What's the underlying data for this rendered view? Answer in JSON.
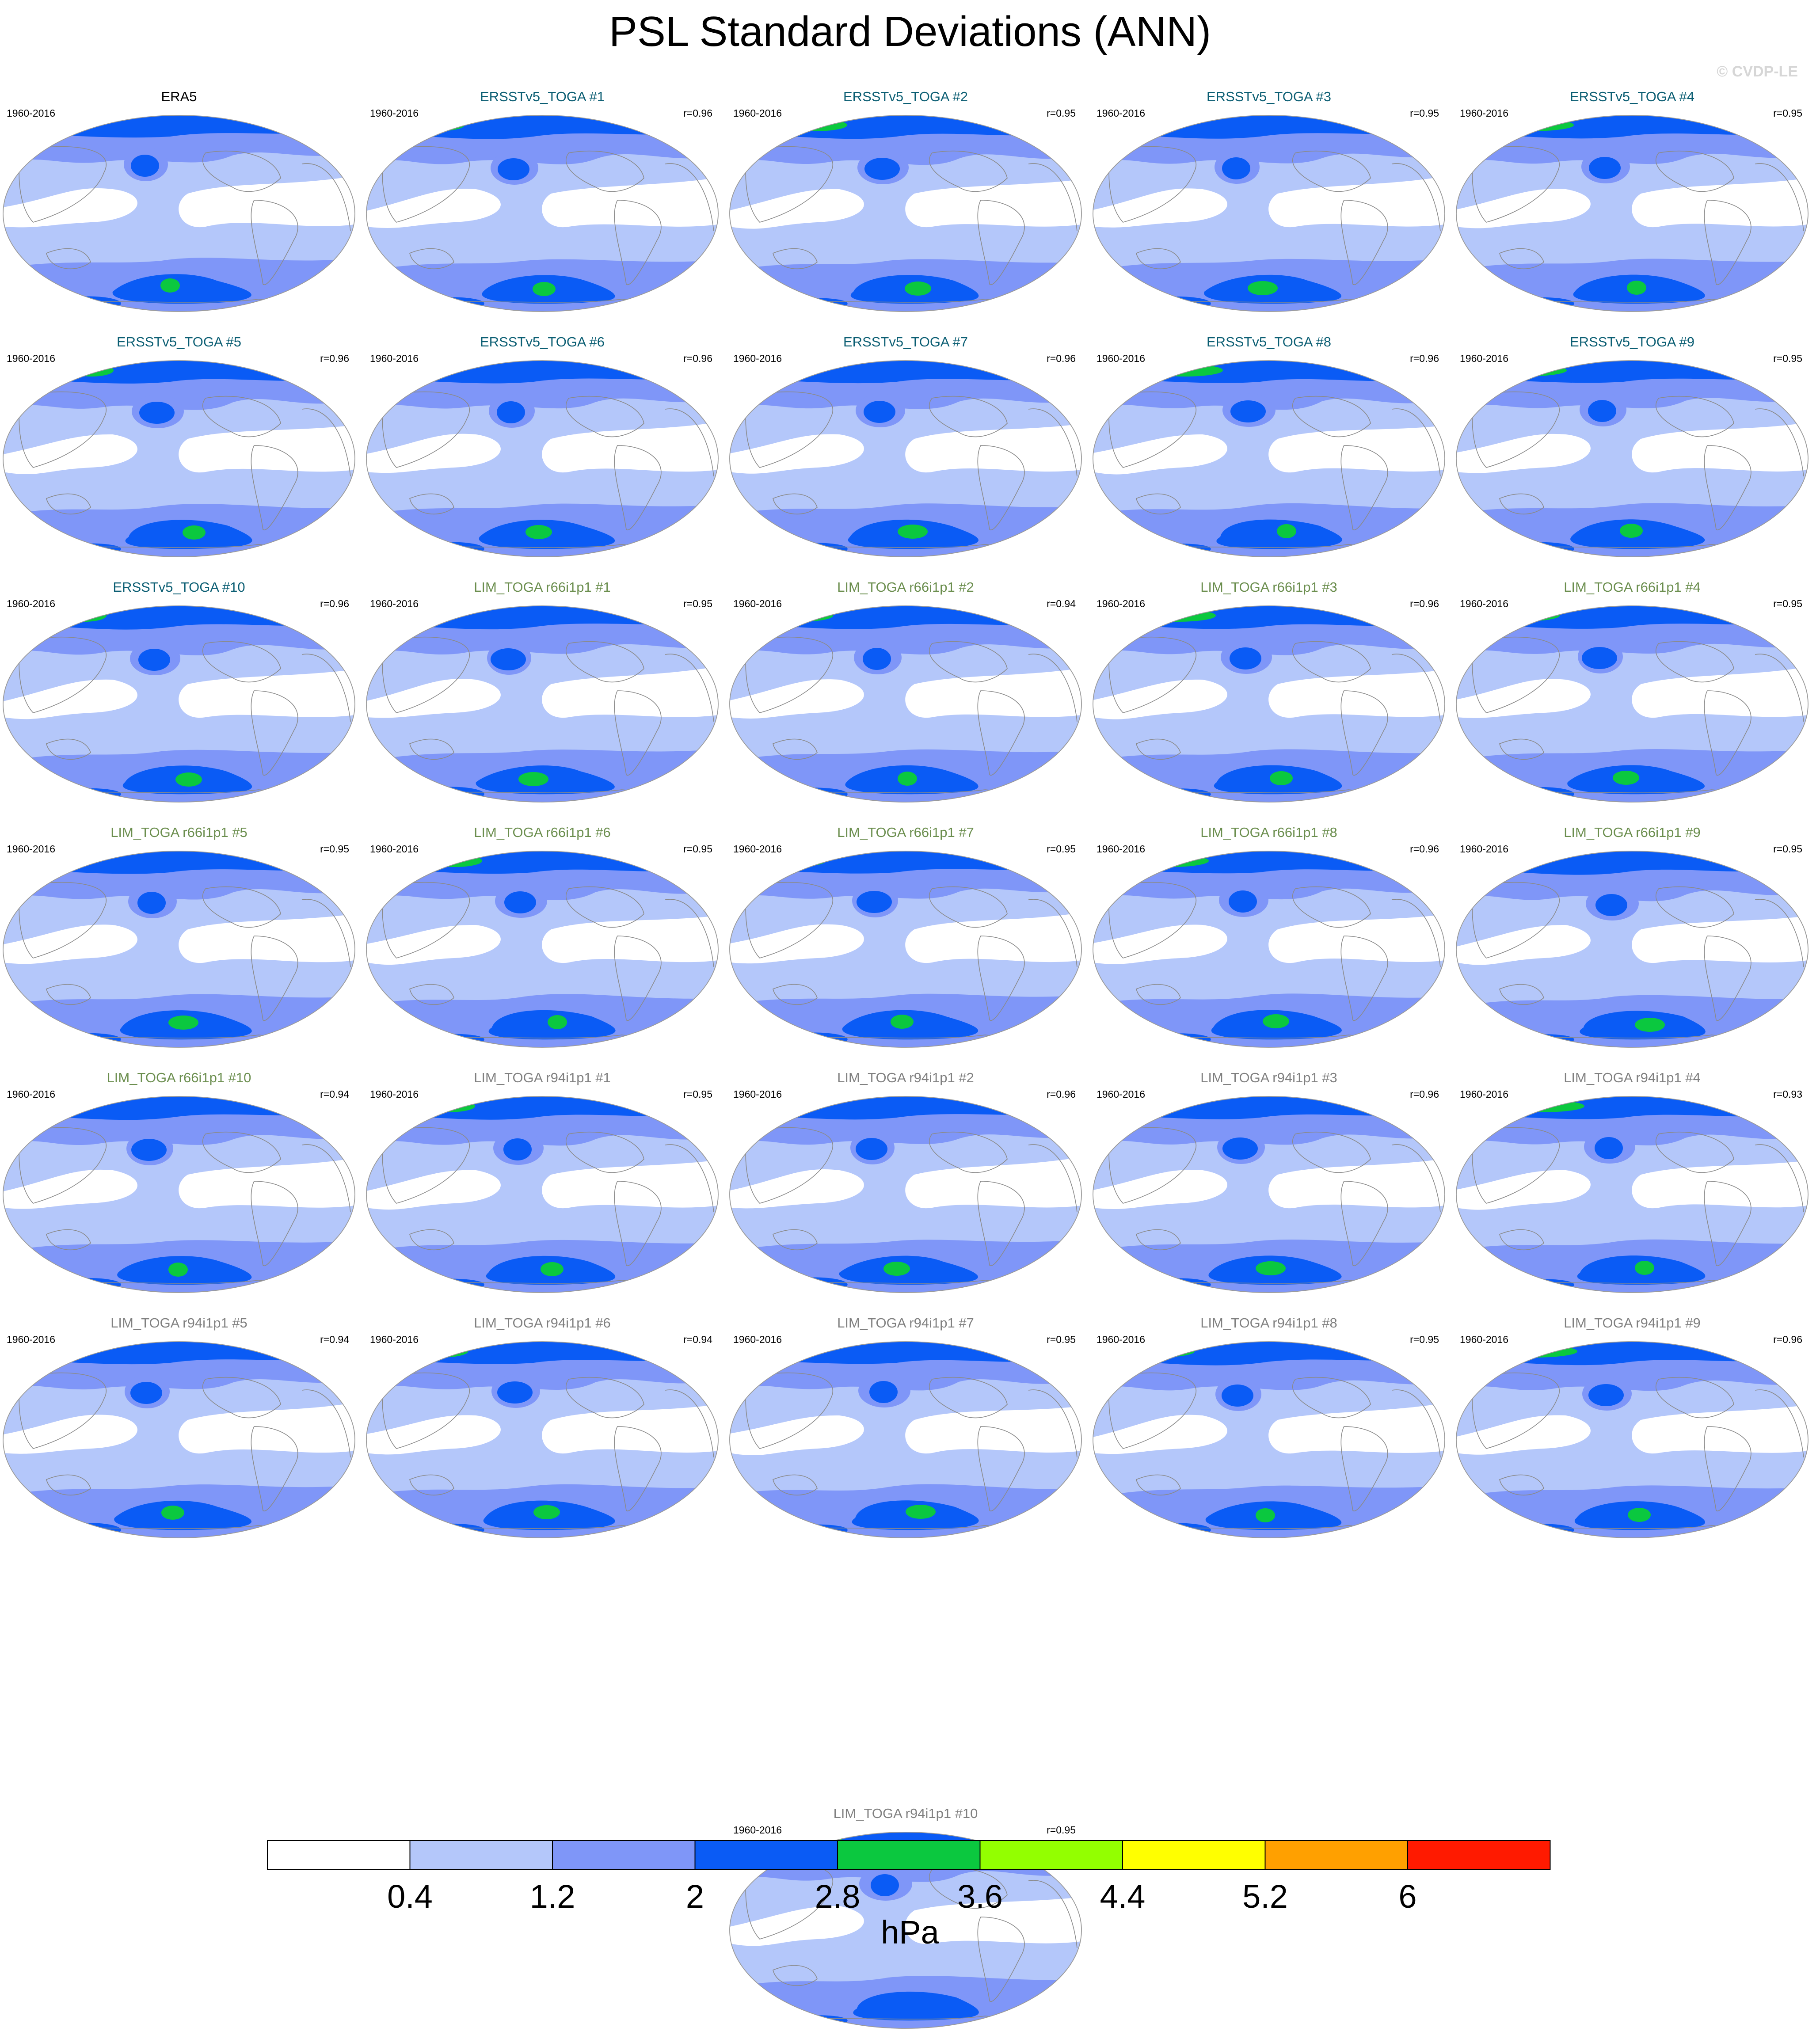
{
  "title": "PSL Standard Deviations (ANN)",
  "watermark": "© CVDP-LE",
  "colors": {
    "levels": [
      "#ffffff",
      "#b4c7fa",
      "#7f96f8",
      "#0a5bf5",
      "#0bc83f",
      "#93ff00",
      "#ffff00",
      "#ffa000",
      "#ff1a00"
    ],
    "outline": "#8a8a8a",
    "title_obs": "#000000",
    "title_ersst": "#0b5e73",
    "title_lim": "#6b8e4e",
    "title_lim_r94": "#808080"
  },
  "chart_data": {
    "type": "heatmap",
    "panels": [
      {
        "title": "ERA5",
        "period": "1960-2016",
        "r": "",
        "group": "obs"
      },
      {
        "title": "ERSSTv5_TOGA #1",
        "period": "1960-2016",
        "r": "r=0.96",
        "group": "ersst"
      },
      {
        "title": "ERSSTv5_TOGA #2",
        "period": "1960-2016",
        "r": "r=0.95",
        "group": "ersst"
      },
      {
        "title": "ERSSTv5_TOGA #3",
        "period": "1960-2016",
        "r": "r=0.95",
        "group": "ersst"
      },
      {
        "title": "ERSSTv5_TOGA #4",
        "period": "1960-2016",
        "r": "r=0.95",
        "group": "ersst"
      },
      {
        "title": "ERSSTv5_TOGA #5",
        "period": "1960-2016",
        "r": "r=0.96",
        "group": "ersst"
      },
      {
        "title": "ERSSTv5_TOGA #6",
        "period": "1960-2016",
        "r": "r=0.96",
        "group": "ersst"
      },
      {
        "title": "ERSSTv5_TOGA #7",
        "period": "1960-2016",
        "r": "r=0.96",
        "group": "ersst"
      },
      {
        "title": "ERSSTv5_TOGA #8",
        "period": "1960-2016",
        "r": "r=0.96",
        "group": "ersst"
      },
      {
        "title": "ERSSTv5_TOGA #9",
        "period": "1960-2016",
        "r": "r=0.95",
        "group": "ersst"
      },
      {
        "title": "ERSSTv5_TOGA #10",
        "period": "1960-2016",
        "r": "r=0.96",
        "group": "ersst"
      },
      {
        "title": "LIM_TOGA r66i1p1 #1",
        "period": "1960-2016",
        "r": "r=0.95",
        "group": "lim"
      },
      {
        "title": "LIM_TOGA r66i1p1 #2",
        "period": "1960-2016",
        "r": "r=0.94",
        "group": "lim"
      },
      {
        "title": "LIM_TOGA r66i1p1 #3",
        "period": "1960-2016",
        "r": "r=0.96",
        "group": "lim"
      },
      {
        "title": "LIM_TOGA r66i1p1 #4",
        "period": "1960-2016",
        "r": "r=0.95",
        "group": "lim"
      },
      {
        "title": "LIM_TOGA r66i1p1 #5",
        "period": "1960-2016",
        "r": "r=0.95",
        "group": "lim"
      },
      {
        "title": "LIM_TOGA r66i1p1 #6",
        "period": "1960-2016",
        "r": "r=0.95",
        "group": "lim"
      },
      {
        "title": "LIM_TOGA r66i1p1 #7",
        "period": "1960-2016",
        "r": "r=0.95",
        "group": "lim"
      },
      {
        "title": "LIM_TOGA r66i1p1 #8",
        "period": "1960-2016",
        "r": "r=0.96",
        "group": "lim"
      },
      {
        "title": "LIM_TOGA r66i1p1 #9",
        "period": "1960-2016",
        "r": "r=0.95",
        "group": "lim"
      },
      {
        "title": "LIM_TOGA r66i1p1 #10",
        "period": "1960-2016",
        "r": "r=0.94",
        "group": "lim"
      },
      {
        "title": "LIM_TOGA r94i1p1 #1",
        "period": "1960-2016",
        "r": "r=0.95",
        "group": "lim_r94"
      },
      {
        "title": "LIM_TOGA r94i1p1 #2",
        "period": "1960-2016",
        "r": "r=0.96",
        "group": "lim_r94"
      },
      {
        "title": "LIM_TOGA r94i1p1 #3",
        "period": "1960-2016",
        "r": "r=0.96",
        "group": "lim_r94"
      },
      {
        "title": "LIM_TOGA r94i1p1 #4",
        "period": "1960-2016",
        "r": "r=0.93",
        "group": "lim_r94"
      },
      {
        "title": "LIM_TOGA r94i1p1 #5",
        "period": "1960-2016",
        "r": "r=0.94",
        "group": "lim_r94"
      },
      {
        "title": "LIM_TOGA r94i1p1 #6",
        "period": "1960-2016",
        "r": "r=0.94",
        "group": "lim_r94"
      },
      {
        "title": "LIM_TOGA r94i1p1 #7",
        "period": "1960-2016",
        "r": "r=0.95",
        "group": "lim_r94"
      },
      {
        "title": "LIM_TOGA r94i1p1 #8",
        "period": "1960-2016",
        "r": "r=0.95",
        "group": "lim_r94"
      },
      {
        "title": "LIM_TOGA r94i1p1 #9",
        "period": "1960-2016",
        "r": "r=0.96",
        "group": "lim_r94"
      },
      {
        "title": "LIM_TOGA r94i1p1 #10",
        "period": "1960-2016",
        "r": "r=0.95",
        "group": "lim_r94"
      }
    ],
    "colorbar": {
      "levels": [
        0.4,
        1.2,
        2,
        2.8,
        3.6,
        4.4,
        5.2,
        6
      ],
      "tick_labels": [
        "0.4",
        "1.2",
        "2",
        "2.8",
        "3.6",
        "4.4",
        "5.2",
        "6"
      ],
      "unit": "hPa"
    }
  }
}
